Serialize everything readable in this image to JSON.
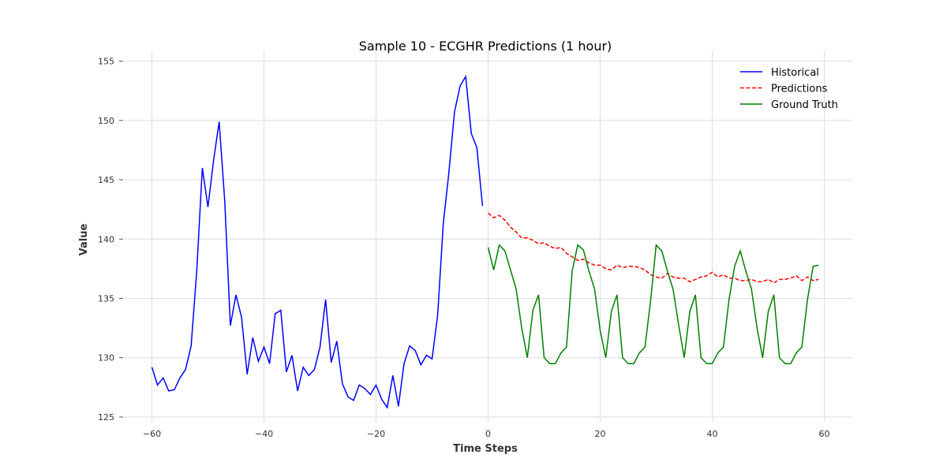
{
  "chart_data": {
    "type": "line",
    "title": "Sample 10 - ECGHR Predictions (1 hour)",
    "xlabel": "Time Steps",
    "ylabel": "Value",
    "xlim": [
      -65,
      65
    ],
    "ylim": [
      124.6,
      155.9
    ],
    "xticks": [
      -60,
      -40,
      -20,
      0,
      20,
      40,
      60
    ],
    "xtick_labels": [
      "−60",
      "−40",
      "−20",
      "0",
      "20",
      "40",
      "60"
    ],
    "yticks": [
      125,
      130,
      135,
      140,
      145,
      150,
      155
    ],
    "ytick_labels": [
      "125",
      "130",
      "135",
      "140",
      "145",
      "150",
      "155"
    ],
    "grid": true,
    "legend_position": "top-right",
    "series": [
      {
        "name": "Historical",
        "color": "#0000ff",
        "style": "solid",
        "x_start": -60,
        "values": [
          129.2,
          127.7,
          128.3,
          127.2,
          127.3,
          128.3,
          129.0,
          131.0,
          137.3,
          146.0,
          142.7,
          146.6,
          149.9,
          143.2,
          132.7,
          135.3,
          133.4,
          128.6,
          131.7,
          129.7,
          130.9,
          129.5,
          133.7,
          134.0,
          128.8,
          130.2,
          127.2,
          129.2,
          128.5,
          129.0,
          130.9,
          134.9,
          129.6,
          131.4,
          127.8,
          126.7,
          126.4,
          127.7,
          127.4,
          126.9,
          127.7,
          126.5,
          125.8,
          128.5,
          125.9,
          129.5,
          131.0,
          130.6,
          129.4,
          130.2,
          129.9,
          133.6,
          141.3,
          145.6,
          150.7,
          152.9,
          153.7,
          148.9,
          147.7,
          142.8
        ]
      },
      {
        "name": "Predictions",
        "color": "#ff0000",
        "style": "dashed",
        "x_start": 0,
        "values": [
          142.2,
          141.8,
          142.0,
          141.6,
          141.0,
          140.6,
          140.1,
          140.1,
          139.9,
          139.6,
          139.7,
          139.4,
          139.2,
          139.3,
          138.8,
          138.5,
          138.2,
          138.3,
          138.0,
          137.8,
          137.8,
          137.5,
          137.4,
          137.8,
          137.6,
          137.7,
          137.7,
          137.6,
          137.4,
          137.0,
          136.8,
          136.7,
          137.1,
          136.8,
          136.7,
          136.7,
          136.4,
          136.6,
          136.8,
          136.9,
          137.2,
          136.8,
          137.0,
          136.7,
          136.7,
          136.5,
          136.5,
          136.6,
          136.4,
          136.4,
          136.6,
          136.3,
          136.6,
          136.6,
          136.7,
          136.9,
          136.5,
          136.8,
          136.5,
          136.6
        ]
      },
      {
        "name": "Ground Truth",
        "color": "#008000",
        "style": "solid",
        "x_start": 0,
        "values": [
          139.3,
          137.4,
          139.5,
          139.0,
          137.4,
          135.8,
          132.5,
          130.0,
          134.0,
          135.3,
          130.0,
          129.5,
          129.5,
          130.4,
          130.9,
          137.3,
          139.5,
          139.1,
          137.3,
          135.8,
          132.3,
          130.0,
          133.9,
          135.3,
          130.0,
          129.5,
          129.5,
          130.4,
          130.9,
          134.8,
          139.5,
          139.0,
          137.3,
          135.8,
          132.8,
          130.0,
          133.9,
          135.3,
          130.0,
          129.5,
          129.5,
          130.4,
          130.9,
          134.9,
          137.7,
          139.0,
          137.3,
          135.8,
          132.5,
          130.0,
          133.9,
          135.3,
          130.0,
          129.5,
          129.5,
          130.4,
          130.9,
          134.9,
          137.7,
          137.8
        ]
      }
    ]
  }
}
